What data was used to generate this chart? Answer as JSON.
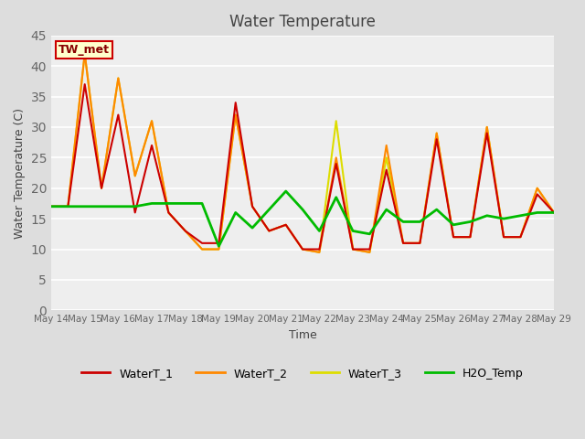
{
  "title": "Water Temperature",
  "xlabel": "Time",
  "ylabel": "Water Temperature (C)",
  "annotation": "TW_met",
  "ylim": [
    0,
    45
  ],
  "yticks": [
    0,
    5,
    10,
    15,
    20,
    25,
    30,
    35,
    40,
    45
  ],
  "x_labels": [
    "May 14",
    "May 15",
    "May 16",
    "May 17",
    "May 18",
    "May 19",
    "May 20",
    "May 21",
    "May 22",
    "May 23",
    "May 24",
    "May 25",
    "May 26",
    "May 27",
    "May 28",
    "May 29"
  ],
  "legend_labels": [
    "WaterT_1",
    "WaterT_2",
    "WaterT_3",
    "H2O_Temp"
  ],
  "colors": {
    "WaterT_1": "#cc0000",
    "WaterT_2": "#ff8800",
    "WaterT_3": "#dddd00",
    "H2O_Temp": "#00bb00"
  },
  "background_color": "#dddddd",
  "plot_bg_color": "#eeeeee",
  "annotation_bg": "#ffffcc",
  "annotation_border": "#cc0000",
  "annotation_text_color": "#880000",
  "x_values": [
    0,
    0.5,
    1,
    1.5,
    2,
    2.5,
    3,
    3.5,
    4,
    4.5,
    5,
    5.5,
    6,
    6.5,
    7,
    7.5,
    8,
    8.5,
    9,
    9.5,
    10,
    10.5,
    11,
    11.5,
    12,
    12.5,
    13,
    13.5,
    14,
    14.5,
    15
  ],
  "WaterT_1": [
    17,
    17,
    37,
    20,
    32,
    16,
    27,
    16,
    13,
    11,
    11,
    34,
    17,
    13,
    14,
    10,
    10,
    24,
    10,
    10,
    23,
    11,
    11,
    28,
    12,
    12,
    29,
    12,
    12,
    19,
    16
  ],
  "WaterT_2": [
    17,
    17,
    42,
    20,
    38,
    22,
    31,
    16,
    13,
    10,
    10,
    32,
    17,
    13,
    14,
    10,
    9.5,
    25,
    10,
    9.5,
    27,
    11,
    11,
    29,
    12,
    12,
    30,
    12,
    12,
    20,
    16
  ],
  "WaterT_3": [
    17,
    17,
    42,
    20,
    38,
    22,
    31,
    16,
    13,
    10,
    10,
    32,
    17,
    13,
    14,
    10,
    9.5,
    31,
    10,
    9.5,
    25,
    11,
    11,
    29,
    12,
    12,
    30,
    12,
    12,
    20,
    16
  ],
  "H2O_Temp": [
    17,
    17,
    17,
    17,
    17,
    17,
    17.5,
    17.5,
    17.5,
    17.5,
    10.5,
    16,
    13.5,
    16.5,
    19.5,
    16.5,
    13,
    18.5,
    13,
    12.5,
    16.5,
    14.5,
    14.5,
    16.5,
    14,
    14.5,
    15.5,
    15,
    15.5,
    16,
    16
  ]
}
